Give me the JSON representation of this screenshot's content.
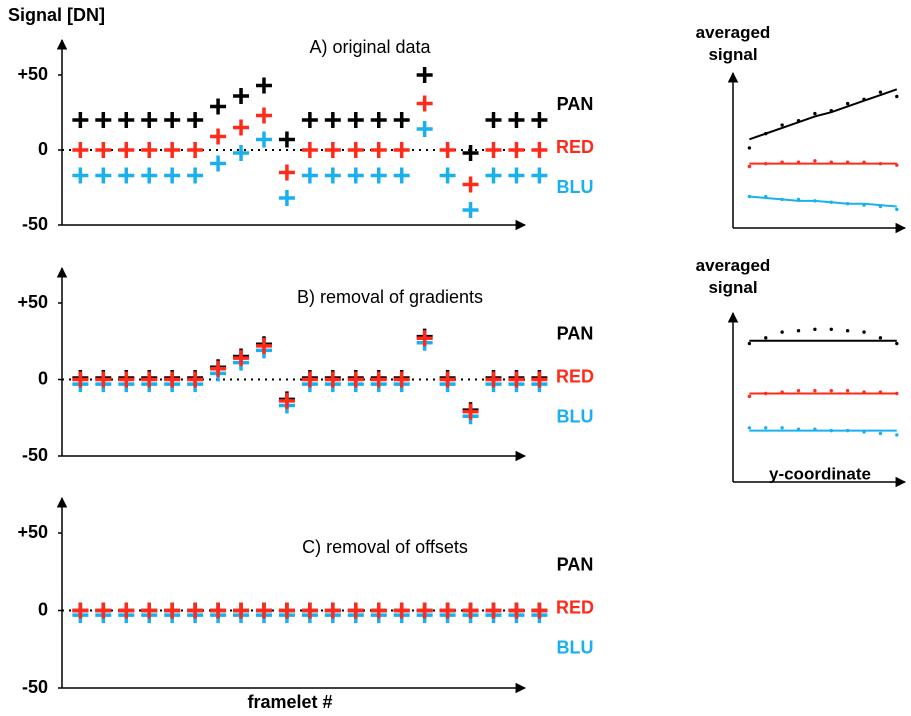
{
  "chart_data": [
    {
      "type": "scatter",
      "title": "A) original data",
      "y_label": "Signal [DN]",
      "x": [
        1,
        2,
        3,
        4,
        5,
        6,
        7,
        8,
        9,
        10,
        11,
        12,
        13,
        14,
        15,
        16,
        17,
        18,
        19,
        20,
        21
      ],
      "xlim": [
        0.2,
        21.2
      ],
      "ylim": [
        -50,
        50
      ],
      "yticks": [
        {
          "value": 50,
          "label": "+50"
        },
        0,
        -50
      ],
      "zero_line": true,
      "series": [
        {
          "name": "PAN",
          "color": "#000000",
          "values": [
            20,
            20,
            20,
            20,
            20,
            20,
            29,
            36,
            43,
            7,
            20,
            20,
            20,
            20,
            20,
            50,
            null,
            -2,
            20,
            20,
            20
          ]
        },
        {
          "name": "RED",
          "color": "#ff2a1a",
          "values": [
            0,
            0,
            0,
            0,
            0,
            0,
            9,
            15,
            23,
            -15,
            0,
            0,
            0,
            0,
            0,
            31,
            0,
            -23,
            0,
            0,
            0
          ]
        },
        {
          "name": "BLU",
          "color": "#1ab0f0",
          "values": [
            -17,
            -17,
            -17,
            -17,
            -17,
            -17,
            -9,
            -2,
            7,
            -32,
            -17,
            -17,
            -17,
            -17,
            -17,
            14,
            -17,
            -40,
            -17,
            -17,
            -17
          ]
        }
      ]
    },
    {
      "type": "scatter",
      "title": "B) removal of gradients",
      "x": [
        1,
        2,
        3,
        4,
        5,
        6,
        7,
        8,
        9,
        10,
        11,
        12,
        13,
        14,
        15,
        16,
        17,
        18,
        19,
        20,
        21
      ],
      "xlim": [
        0.2,
        21.2
      ],
      "ylim": [
        -50,
        50
      ],
      "yticks": [
        {
          "value": 50,
          "label": "+50"
        },
        0,
        -50
      ],
      "zero_line": true,
      "series": [
        {
          "name": "PAN",
          "color": "#000000",
          "values": [
            1,
            1,
            1,
            1,
            1,
            1,
            8,
            15,
            23,
            -13,
            1,
            1,
            1,
            1,
            1,
            28,
            1,
            -20,
            1,
            1,
            1
          ]
        },
        {
          "name": "RED",
          "color": "#ff2a1a",
          "values": [
            0,
            0,
            0,
            0,
            0,
            0,
            7,
            14,
            22,
            -14,
            0,
            0,
            0,
            0,
            0,
            27,
            0,
            -21,
            0,
            0,
            0
          ]
        },
        {
          "name": "BLU",
          "color": "#1ab0f0",
          "values": [
            -3,
            -3,
            -3,
            -3,
            -3,
            -3,
            4,
            11,
            19,
            -17,
            -3,
            -3,
            -3,
            -3,
            -3,
            24,
            -3,
            -24,
            -3,
            -3,
            -3
          ]
        }
      ]
    },
    {
      "type": "scatter",
      "title": "C) removal of offsets",
      "x_label": "framelet #",
      "x": [
        1,
        2,
        3,
        4,
        5,
        6,
        7,
        8,
        9,
        10,
        11,
        12,
        13,
        14,
        15,
        16,
        17,
        18,
        19,
        20,
        21
      ],
      "xlim": [
        0.2,
        21.2
      ],
      "ylim": [
        -50,
        50
      ],
      "yticks": [
        {
          "value": 50,
          "label": "+50"
        },
        0,
        -50
      ],
      "zero_line": true,
      "series": [
        {
          "name": "PAN",
          "color": "#000000",
          "values": [
            0,
            0,
            0,
            0,
            0,
            0,
            0,
            0,
            0,
            0,
            0,
            0,
            0,
            0,
            0,
            0,
            0,
            0,
            0,
            0,
            0
          ]
        },
        {
          "name": "RED",
          "color": "#ff2a1a",
          "values": [
            0,
            0,
            0,
            0,
            0,
            0,
            0,
            0,
            0,
            0,
            0,
            0,
            0,
            0,
            0,
            0,
            0,
            0,
            0,
            0,
            0
          ]
        },
        {
          "name": "BLU",
          "color": "#1ab0f0",
          "values": [
            -3,
            -3,
            -3,
            -3,
            -3,
            -3,
            -3,
            -3,
            -3,
            -3,
            -3,
            -3,
            -3,
            -3,
            -3,
            -3,
            -3,
            -3,
            -3,
            -3,
            -3
          ]
        }
      ]
    },
    {
      "type": "line",
      "y_label": "averaged signal",
      "x": [
        1,
        2,
        3,
        4,
        5,
        6,
        7,
        8,
        9,
        10
      ],
      "xlim": [
        0,
        10.5
      ],
      "ylim": [
        0,
        100
      ],
      "series": [
        {
          "color": "#000000",
          "style": "solid",
          "values": [
            62,
            66,
            70,
            74,
            78,
            81,
            85,
            89,
            93,
            97
          ]
        },
        {
          "color": "#000000",
          "style": "dotted",
          "values": [
            56,
            66,
            72,
            75,
            80,
            82,
            87,
            90,
            95,
            92
          ]
        },
        {
          "color": "#ff2a1a",
          "style": "solid",
          "values": [
            45,
            45,
            45,
            45,
            45,
            45,
            45,
            45,
            45,
            45
          ]
        },
        {
          "color": "#ff2a1a",
          "style": "dotted",
          "values": [
            43,
            45,
            46,
            46,
            47,
            46,
            46,
            46,
            45,
            44
          ]
        },
        {
          "color": "#1ab0f0",
          "style": "solid",
          "values": [
            22,
            21,
            20,
            19,
            19,
            18,
            17,
            17,
            16,
            15
          ]
        },
        {
          "color": "#1ab0f0",
          "style": "dotted",
          "values": [
            22,
            22,
            20,
            20,
            19,
            18,
            17,
            16,
            15,
            13
          ]
        }
      ]
    },
    {
      "type": "line",
      "y_label": "averaged signal",
      "x_label": "y-coordinate",
      "x": [
        1,
        2,
        3,
        4,
        5,
        6,
        7,
        8,
        9,
        10
      ],
      "xlim": [
        0,
        10.5
      ],
      "ylim": [
        0,
        110
      ],
      "series": [
        {
          "color": "#000000",
          "style": "solid",
          "values": [
            99,
            99,
            99,
            99,
            99,
            99,
            99,
            99,
            99,
            99
          ]
        },
        {
          "color": "#000000",
          "style": "dotted",
          "values": [
            97,
            101,
            105,
            106,
            107,
            107,
            106,
            105,
            101,
            97
          ]
        },
        {
          "color": "#ff2a1a",
          "style": "solid",
          "values": [
            62,
            62,
            62,
            62,
            62,
            62,
            62,
            62,
            62,
            62
          ]
        },
        {
          "color": "#ff2a1a",
          "style": "dotted",
          "values": [
            60,
            62,
            63,
            64,
            64,
            64,
            64,
            63,
            63,
            62
          ]
        },
        {
          "color": "#1ab0f0",
          "style": "solid",
          "values": [
            36,
            36,
            36,
            36,
            36,
            36,
            36,
            36,
            36,
            36
          ]
        },
        {
          "color": "#1ab0f0",
          "style": "dotted",
          "values": [
            38,
            38,
            38,
            37,
            37,
            36,
            36,
            35,
            34,
            33
          ]
        }
      ]
    }
  ]
}
